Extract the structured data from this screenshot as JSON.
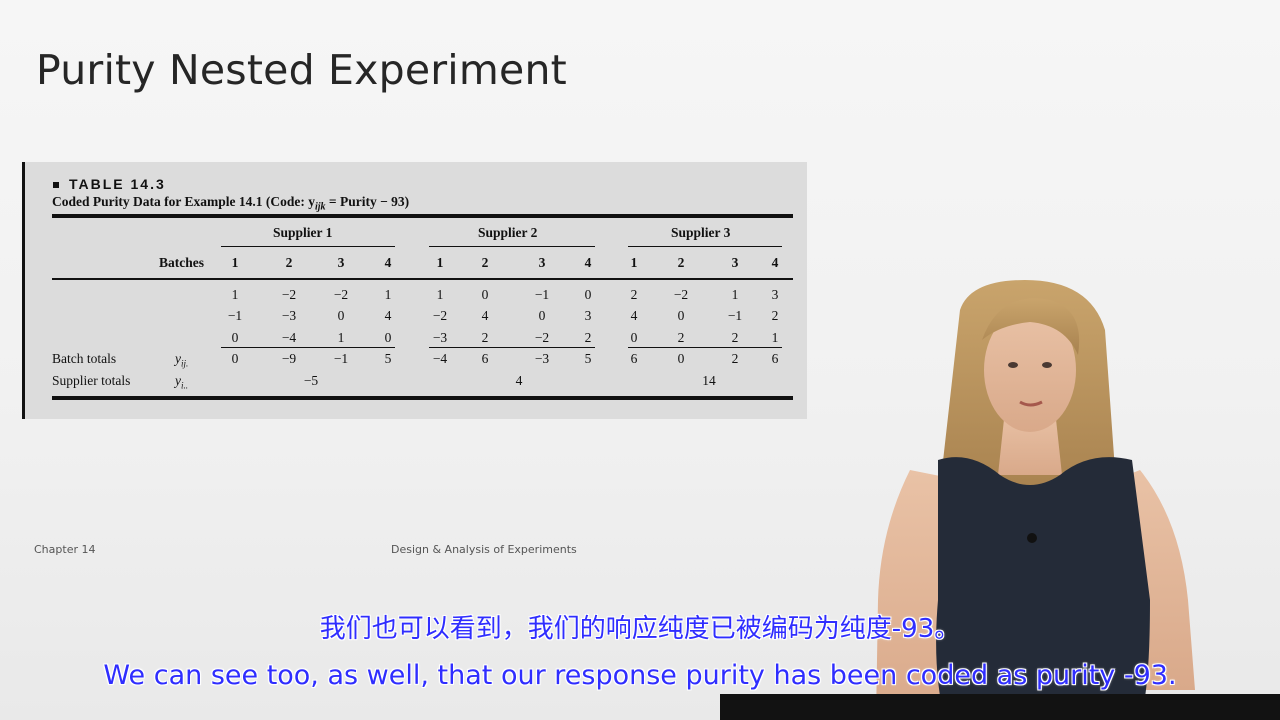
{
  "slide": {
    "title": "Purity Nested Experiment",
    "footer_left": "Chapter 14",
    "footer_center": "Design & Analysis of Experiments"
  },
  "table": {
    "label": "TABLE 14.3",
    "caption": "Coded Purity Data for Example 14.1 (Code: y",
    "caption_sub": "ijk",
    "caption_rest": " = Purity − 93)",
    "batches_label": "Batches",
    "suppliers": [
      "Supplier 1",
      "Supplier 2",
      "Supplier 3"
    ],
    "batch_numbers": [
      "1",
      "2",
      "3",
      "4"
    ],
    "observations": [
      [
        "1",
        "−2",
        "−2",
        "1",
        "1",
        "0",
        "−1",
        "0",
        "2",
        "−2",
        "1",
        "3"
      ],
      [
        "−1",
        "−3",
        "0",
        "4",
        "−2",
        "4",
        "0",
        "3",
        "4",
        "0",
        "−1",
        "2"
      ],
      [
        "0",
        "−4",
        "1",
        "0",
        "−3",
        "2",
        "−2",
        "2",
        "0",
        "2",
        "2",
        "1"
      ]
    ],
    "batch_totals_label": "Batch totals",
    "batch_totals_symbol": "y",
    "batch_totals_sub": "ij.",
    "batch_totals": [
      "0",
      "−9",
      "−1",
      "5",
      "−4",
      "6",
      "−3",
      "5",
      "6",
      "0",
      "2",
      "6"
    ],
    "supplier_totals_label": "Supplier totals",
    "supplier_totals_symbol": "y",
    "supplier_totals_sub": "i..",
    "supplier_totals": [
      "−5",
      "4",
      "14"
    ]
  },
  "subtitles": {
    "chinese": "我们也可以看到，我们的响应纯度已被编码为纯度-93。",
    "english": "We can see too, as well, that our response purity has been coded as purity -93."
  },
  "colors": {
    "subtitle_text": "#2f2dff",
    "subtitle_outline": "#ffffff",
    "panel_bg": "#dcdcdc"
  }
}
